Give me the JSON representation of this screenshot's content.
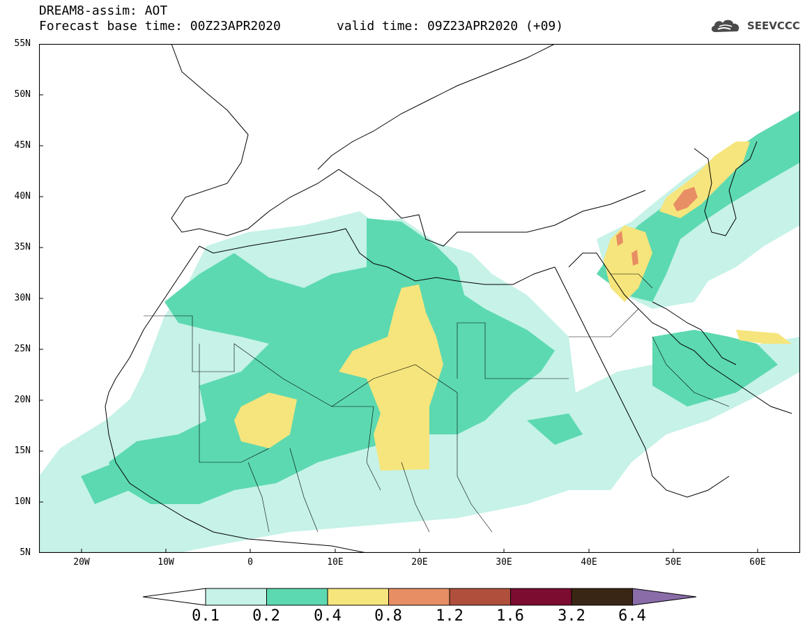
{
  "header": {
    "title": "DREAM8-assim: AOT",
    "base_time": "Forecast base time: 00Z23APR2020",
    "valid_time": "valid time: 09Z23APR2020 (+09)",
    "logo_text": "SEEVCCC",
    "logo_icon": "cloud-logo-icon"
  },
  "map": {
    "projection": "equirectangular",
    "extent": {
      "lon_min": -25,
      "lon_max": 65,
      "lat_min": 5,
      "lat_max": 55
    },
    "lat_ticks": [
      {
        "label": "55N"
      },
      {
        "label": "50N"
      },
      {
        "label": "45N"
      },
      {
        "label": "40N"
      },
      {
        "label": "35N"
      },
      {
        "label": "30N"
      },
      {
        "label": "25N"
      },
      {
        "label": "20N"
      },
      {
        "label": "15N"
      },
      {
        "label": "10N"
      },
      {
        "label": "5N"
      }
    ],
    "lon_ticks": [
      {
        "label": "20W"
      },
      {
        "label": "10W"
      },
      {
        "label": "0"
      },
      {
        "label": "10E"
      },
      {
        "label": "20E"
      },
      {
        "label": "30E"
      },
      {
        "label": "40E"
      },
      {
        "label": "50E"
      },
      {
        "label": "60E"
      }
    ],
    "field": "Aerosol optical thickness (dust)"
  },
  "colorbar": {
    "labels": [
      "0.1",
      "0.2",
      "0.4",
      "0.8",
      "1.2",
      "1.6",
      "3.2",
      "6.4"
    ],
    "colors": [
      "#ffffff",
      "#c6f2e7",
      "#5cd9b0",
      "#f6e57c",
      "#e88e64",
      "#b0503c",
      "#7c0c30",
      "#3a2614",
      "#8a6ca8"
    ]
  }
}
